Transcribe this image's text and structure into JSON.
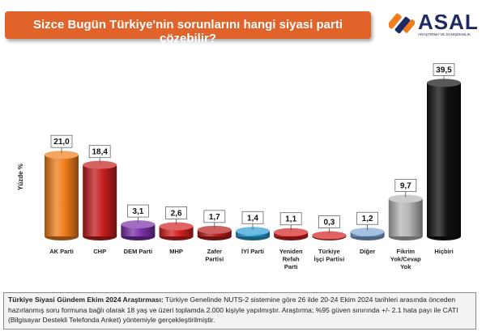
{
  "title": "Sizce Bugün Türkiye'nin sorunlarını hangi siyasi parti çözebilir?",
  "logo": {
    "name": "ASAL",
    "subtitle": "ARAŞTIRMA VE DANIŞMANLIK"
  },
  "colors": {
    "title_bar": "#e2632a",
    "logo_text": "#1f2a63"
  },
  "chart_data": {
    "type": "bar",
    "ylabel": "Yüzde %",
    "xlabel": "",
    "ylim": [
      0,
      40
    ],
    "grid": false,
    "legend": "none",
    "data_labels": true,
    "categories": [
      "AK Parti",
      "CHP",
      "DEM Parti",
      "MHP",
      "Zafer Partisi",
      "İYİ Parti",
      "Yeniden Refah Parti",
      "Türkiye İşçi Partisi",
      "Diğer",
      "Fikrim Yok/Cevap Yok",
      "Hiçbiri"
    ],
    "category_lines": [
      [
        "AK Parti"
      ],
      [
        "CHP"
      ],
      [
        "DEM Parti"
      ],
      [
        "MHP"
      ],
      [
        "Zafer",
        "Partisi"
      ],
      [
        "İYİ Parti"
      ],
      [
        "Yeniden",
        "Refah",
        "Parti"
      ],
      [
        "Türkiye",
        "İşçi Partisi"
      ],
      [
        "Diğer"
      ],
      [
        "Fikrim",
        "Yok/Cevap",
        "Yok"
      ],
      [
        "Hiçbiri"
      ]
    ],
    "values": [
      21.0,
      18.4,
      3.1,
      2.6,
      1.7,
      1.4,
      1.1,
      0.3,
      1.2,
      9.7,
      39.5
    ],
    "value_labels": [
      "21,0",
      "18,4",
      "3,1",
      "2,6",
      "1,7",
      "1,4",
      "1,1",
      "0,3",
      "1,2",
      "9,7",
      "39,5"
    ],
    "bar_colors": [
      "#f07d1b",
      "#c41e1e",
      "#7b2fa8",
      "#d42020",
      "#b71c1c",
      "#2a9fd6",
      "#d42020",
      "#d42020",
      "#7fa7d6",
      "#b5b5b5",
      "#111111"
    ]
  },
  "note": {
    "heading": "Türkiye Siyasi Gündem Ekim 2024 Araştırması:",
    "body": " Türkiye Genelinde NUTS-2 sistemine göre 26 ilde 20-24 Ekim 2024 tarihleri arasında önceden hazırlanmış soru formuna bağlı olarak 18 yaş ve üzeri toplamda 2.000 kişiyle yapılmıştır. Araştırma; %95 güven sınırında +/- 2.1 hata payı ile CATI (Bilgisayar Destekli Telefonda Anket) yöntemiyle gerçekleştirilmiştir."
  }
}
